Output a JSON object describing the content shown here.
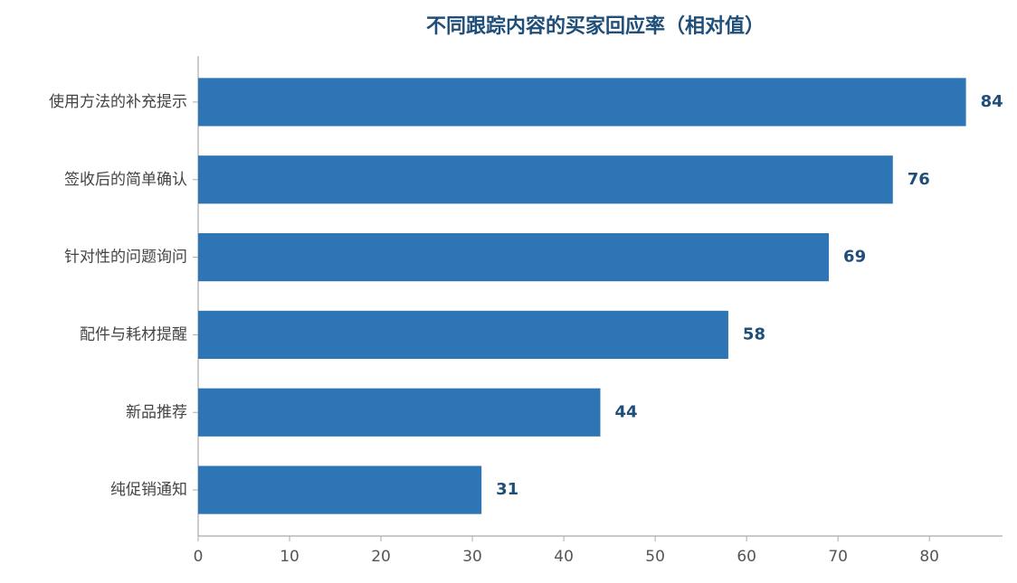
{
  "chart_data": {
    "type": "barh",
    "title": "不同跟踪内容的买家回应率（相对值）",
    "categories": [
      "使用方法的补充提示",
      "签收后的简单确认",
      "针对性的问题询问",
      "配件与耗材提醒",
      "新品推荐",
      "纯促销通知"
    ],
    "values": [
      84,
      76,
      69,
      58,
      44,
      31
    ],
    "color": "#2e75b6",
    "xlim": [
      0,
      88
    ],
    "xticks": [
      0,
      10,
      20,
      30,
      40,
      50,
      60,
      70,
      80
    ],
    "grid": false
  }
}
